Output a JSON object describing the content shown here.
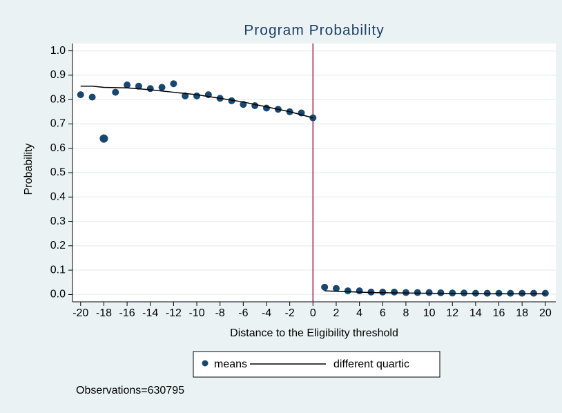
{
  "chart_data": {
    "type": "scatter-fit",
    "title": "Program Probability",
    "x_label": "Distance to the Eligibility threshold",
    "y_label": "Probability",
    "note": "Observations=630795",
    "xlim": [
      -20.7,
      20.9
    ],
    "ylim": [
      -0.03,
      1.03
    ],
    "xticks": [
      -20,
      -18,
      -16,
      -14,
      -12,
      -10,
      -8,
      -6,
      -4,
      -2,
      0,
      2,
      4,
      6,
      8,
      10,
      12,
      14,
      16,
      18,
      20
    ],
    "yticks": [
      {
        "value": 0,
        "label": "0.0"
      },
      0.1,
      0.2,
      0.3,
      0.4,
      0.5,
      0.6,
      0.7,
      0.8,
      0.9,
      {
        "value": 1,
        "label": "1.0"
      }
    ],
    "threshold": 0,
    "threshold_color": "#9e1c3c",
    "grid": true,
    "series": [
      {
        "name": "means",
        "color": "#1a476f",
        "x": [
          -20,
          -19,
          -18,
          -17,
          -16,
          -15,
          -14,
          -13,
          -12,
          -11,
          -10,
          -9,
          -8,
          -7,
          -6,
          -5,
          -4,
          -3,
          -2,
          -1,
          0,
          1,
          2,
          3,
          4,
          5,
          6,
          7,
          8,
          9,
          10,
          11,
          12,
          13,
          14,
          15,
          16,
          17,
          18,
          19,
          20
        ],
        "values": [
          0.82,
          0.81,
          0.64,
          0.83,
          0.86,
          0.855,
          0.845,
          0.85,
          0.865,
          0.815,
          0.815,
          0.82,
          0.805,
          0.795,
          0.78,
          0.775,
          0.765,
          0.76,
          0.75,
          0.745,
          0.725,
          0.03,
          0.025,
          0.015,
          0.015,
          0.01,
          0.01,
          0.01,
          0.008,
          0.008,
          0.008,
          0.007,
          0.006,
          0.006,
          0.005,
          0.005,
          0.005,
          0.005,
          0.005,
          0.005,
          0.005
        ]
      },
      {
        "name": "different quartic",
        "color": "#000000",
        "pieces": [
          {
            "x": [
              -20,
              -19,
              -18,
              -16,
              -14,
              -12,
              -10,
              -8,
              -6,
              -4,
              -2,
              0
            ],
            "values": [
              0.855,
              0.855,
              0.85,
              0.848,
              0.84,
              0.83,
              0.82,
              0.805,
              0.79,
              0.77,
              0.75,
              0.725
            ]
          },
          {
            "x": [
              1,
              5,
              10,
              15,
              20
            ],
            "values": [
              0.015,
              0.008,
              0.005,
              0.003,
              0.003
            ]
          }
        ]
      }
    ]
  }
}
